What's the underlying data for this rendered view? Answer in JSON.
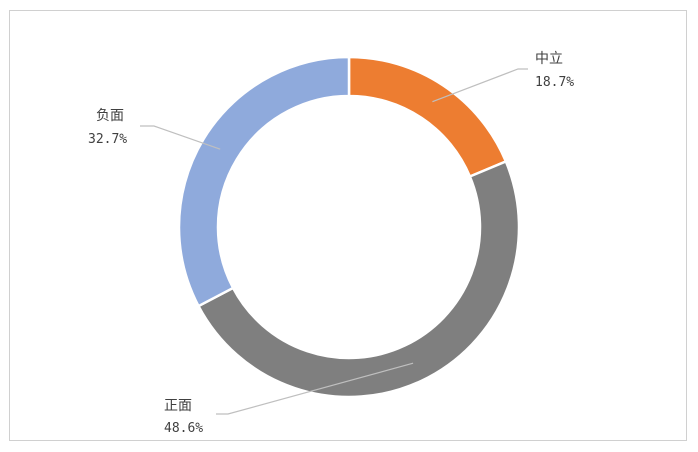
{
  "chart_data": {
    "type": "pie",
    "variant": "donut",
    "title": "",
    "categories": [
      "中立",
      "正面",
      "负面"
    ],
    "values": [
      18.7,
      48.6,
      32.7
    ],
    "value_labels": [
      "18.7%",
      "48.6%",
      "32.7%"
    ],
    "colors": [
      "#ED7D31",
      "#7F7F7F",
      "#8FAADC"
    ],
    "start_angle_deg": 0,
    "direction": "clockwise",
    "legend": "none",
    "grid": false
  }
}
